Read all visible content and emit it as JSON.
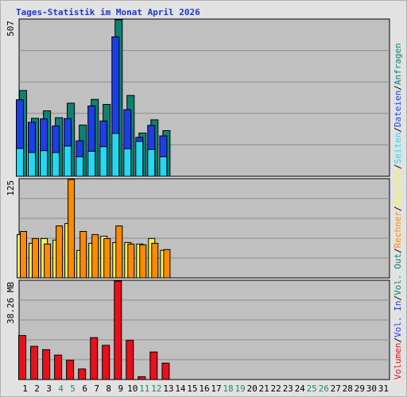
{
  "page": {
    "title": "Tages-Statistik im Monat April 2026"
  },
  "chart_data": {
    "type": "bar",
    "title": "Tages-Statistik im Monat April 2026",
    "days": [
      "1",
      "2",
      "3",
      "4",
      "5",
      "6",
      "7",
      "8",
      "9",
      "10",
      "11",
      "12",
      "13",
      "14",
      "15",
      "16",
      "17",
      "18",
      "19",
      "20",
      "21",
      "22",
      "23",
      "24",
      "25",
      "26",
      "27",
      "28",
      "29",
      "30",
      "31"
    ],
    "weekend_days": [
      "4",
      "5",
      "11",
      "12",
      "18",
      "19",
      "25",
      "26"
    ],
    "panels": [
      {
        "id": "requests",
        "max_label": "507",
        "max": 507,
        "series": [
          {
            "name": "Anfragen",
            "color": "#0a8470",
            "values": [
              278,
              188,
              212,
              190,
              237,
              166,
              249,
              233,
              507,
              262,
              140,
              183,
              148,
              null,
              null,
              null,
              null,
              null,
              null,
              null,
              null,
              null,
              null,
              null,
              null,
              null,
              null,
              null,
              null,
              null,
              null
            ]
          },
          {
            "name": "Dateien",
            "color": "#1b3fe6",
            "values": [
              248,
              175,
              186,
              163,
              187,
              115,
              228,
              179,
              452,
              216,
              126,
              165,
              131,
              null,
              null,
              null,
              null,
              null,
              null,
              null,
              null,
              null,
              null,
              null,
              null,
              null,
              null,
              null,
              null,
              null,
              null
            ]
          },
          {
            "name": "Seiten",
            "color": "#22d8f2",
            "values": [
              90,
              77,
              83,
              77,
              98,
              63,
              81,
              96,
              139,
              89,
              113,
              87,
              63,
              null,
              null,
              null,
              null,
              null,
              null,
              null,
              null,
              null,
              null,
              null,
              null,
              null,
              null,
              null,
              null,
              null,
              null
            ]
          }
        ]
      },
      {
        "id": "visits",
        "max_label": "125",
        "max": 125,
        "series": [
          {
            "name": "Besuche",
            "color": "#f6f34a",
            "values": [
              55,
              44,
              50,
              48,
              69,
              35,
              44,
              53,
              45,
              45,
              43,
              50,
              35,
              null,
              null,
              null,
              null,
              null,
              null,
              null,
              null,
              null,
              null,
              null,
              null,
              null,
              null,
              null,
              null,
              null,
              null
            ]
          },
          {
            "name": "Rechner",
            "color": "#ff8a00",
            "values": [
              59,
              50,
              43,
              66,
              125,
              59,
              55,
              50,
              66,
              43,
              42,
              44,
              36,
              null,
              null,
              null,
              null,
              null,
              null,
              null,
              null,
              null,
              null,
              null,
              null,
              null,
              null,
              null,
              null,
              null,
              null
            ]
          }
        ]
      },
      {
        "id": "traffic",
        "max_label": "38.26 MB",
        "max": 38.26,
        "series": [
          {
            "name": "Vol. Out",
            "color": "#0a8470",
            "values": [
              0,
              0,
              0,
              0,
              0,
              0,
              0,
              0,
              0,
              0,
              0,
              0,
              0,
              null,
              null,
              null,
              null,
              null,
              null,
              null,
              null,
              null,
              null,
              null,
              null,
              null,
              null,
              null,
              null,
              null,
              null
            ]
          },
          {
            "name": "Vol. In",
            "color": "#1b3fe6",
            "values": [
              0,
              0,
              0,
              0,
              0,
              0,
              0,
              0,
              0,
              0,
              0,
              0,
              0,
              null,
              null,
              null,
              null,
              null,
              null,
              null,
              null,
              null,
              null,
              null,
              null,
              null,
              null,
              null,
              null,
              null,
              null
            ]
          },
          {
            "name": "Volumen",
            "color": "#e8101a",
            "values": [
              17.1,
              12.9,
              11.6,
              9.5,
              7.5,
              4.1,
              16.3,
              13.3,
              38.26,
              15.2,
              1.1,
              10.7,
              6.4,
              null,
              null,
              null,
              null,
              null,
              null,
              null,
              null,
              null,
              null,
              null,
              null,
              null,
              null,
              null,
              null,
              null,
              null
            ]
          }
        ]
      }
    ],
    "legend": [
      {
        "label": "Volumen",
        "color": "#e8101a"
      },
      {
        "label": "Vol. In",
        "color": "#1b3fe6"
      },
      {
        "label": "Vol. Out",
        "color": "#0a8470"
      },
      {
        "label": "Rechner",
        "color": "#ff8a00"
      },
      {
        "label": "Besuche",
        "color": "#f6f34a"
      },
      {
        "label": "Seiten",
        "color": "#22d8f2"
      },
      {
        "label": "Dateien",
        "color": "#1b3fe6"
      },
      {
        "label": "Anfragen",
        "color": "#0a8470"
      }
    ],
    "separator_color": "#000000",
    "weekday_label_color": "#000000",
    "weekend_label_color": "#1a8a70",
    "plot_background": "#c0c0c0",
    "grid": true
  }
}
